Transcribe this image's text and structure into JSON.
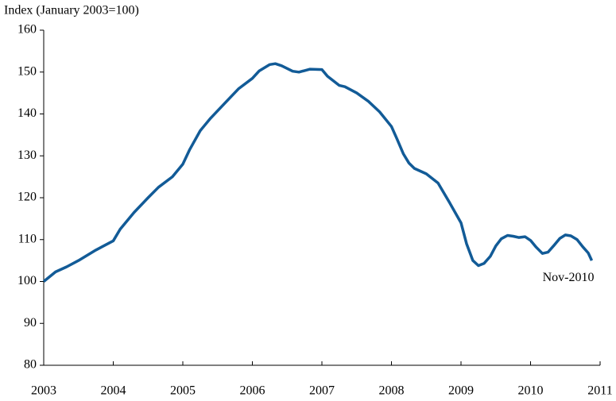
{
  "chart_data": {
    "type": "line",
    "y_label": "Index (January 2003=100)",
    "annotation": "Nov-2010",
    "x": [
      2003.0,
      2003.17,
      2003.33,
      2003.5,
      2003.75,
      2004.0,
      2004.1,
      2004.3,
      2004.5,
      2004.65,
      2004.85,
      2005.0,
      2005.1,
      2005.25,
      2005.4,
      2005.6,
      2005.8,
      2006.0,
      2006.1,
      2006.25,
      2006.33,
      2006.42,
      2006.58,
      2006.67,
      2006.83,
      2007.0,
      2007.08,
      2007.25,
      2007.33,
      2007.5,
      2007.67,
      2007.83,
      2008.0,
      2008.08,
      2008.17,
      2008.25,
      2008.33,
      2008.5,
      2008.67,
      2008.83,
      2009.0,
      2009.08,
      2009.17,
      2009.25,
      2009.33,
      2009.42,
      2009.5,
      2009.58,
      2009.67,
      2009.75,
      2009.83,
      2009.92,
      2010.0,
      2010.08,
      2010.17,
      2010.25,
      2010.33,
      2010.42,
      2010.5,
      2010.58,
      2010.67,
      2010.75,
      2010.83,
      2010.88
    ],
    "series": [
      {
        "name": "Index",
        "color": "#125b97",
        "values": [
          100,
          102.3,
          103.5,
          105,
          107.5,
          109.7,
          112.5,
          116.5,
          120,
          122.5,
          125,
          128,
          131.5,
          136,
          139,
          142.5,
          146,
          148.5,
          150.3,
          151.8,
          152,
          151.5,
          150.2,
          150,
          150.7,
          150.6,
          149,
          146.8,
          146.5,
          145,
          143,
          140.5,
          137,
          134,
          130.5,
          128.3,
          127,
          125.7,
          123.5,
          119,
          114,
          109,
          105,
          103.8,
          104.3,
          106,
          108.5,
          110.2,
          111,
          110.8,
          110.5,
          110.7,
          109.8,
          108.2,
          106.7,
          107,
          108.5,
          110.3,
          111.1,
          110.9,
          110,
          108.3,
          106.8,
          105
        ]
      }
    ],
    "xlim": [
      2003,
      2011
    ],
    "xticks": [
      2003,
      2004,
      2005,
      2006,
      2007,
      2008,
      2009,
      2010,
      2011
    ],
    "ylim": [
      80,
      160
    ],
    "yticks": [
      80,
      90,
      100,
      110,
      120,
      130,
      140,
      150,
      160
    ],
    "grid": false
  }
}
